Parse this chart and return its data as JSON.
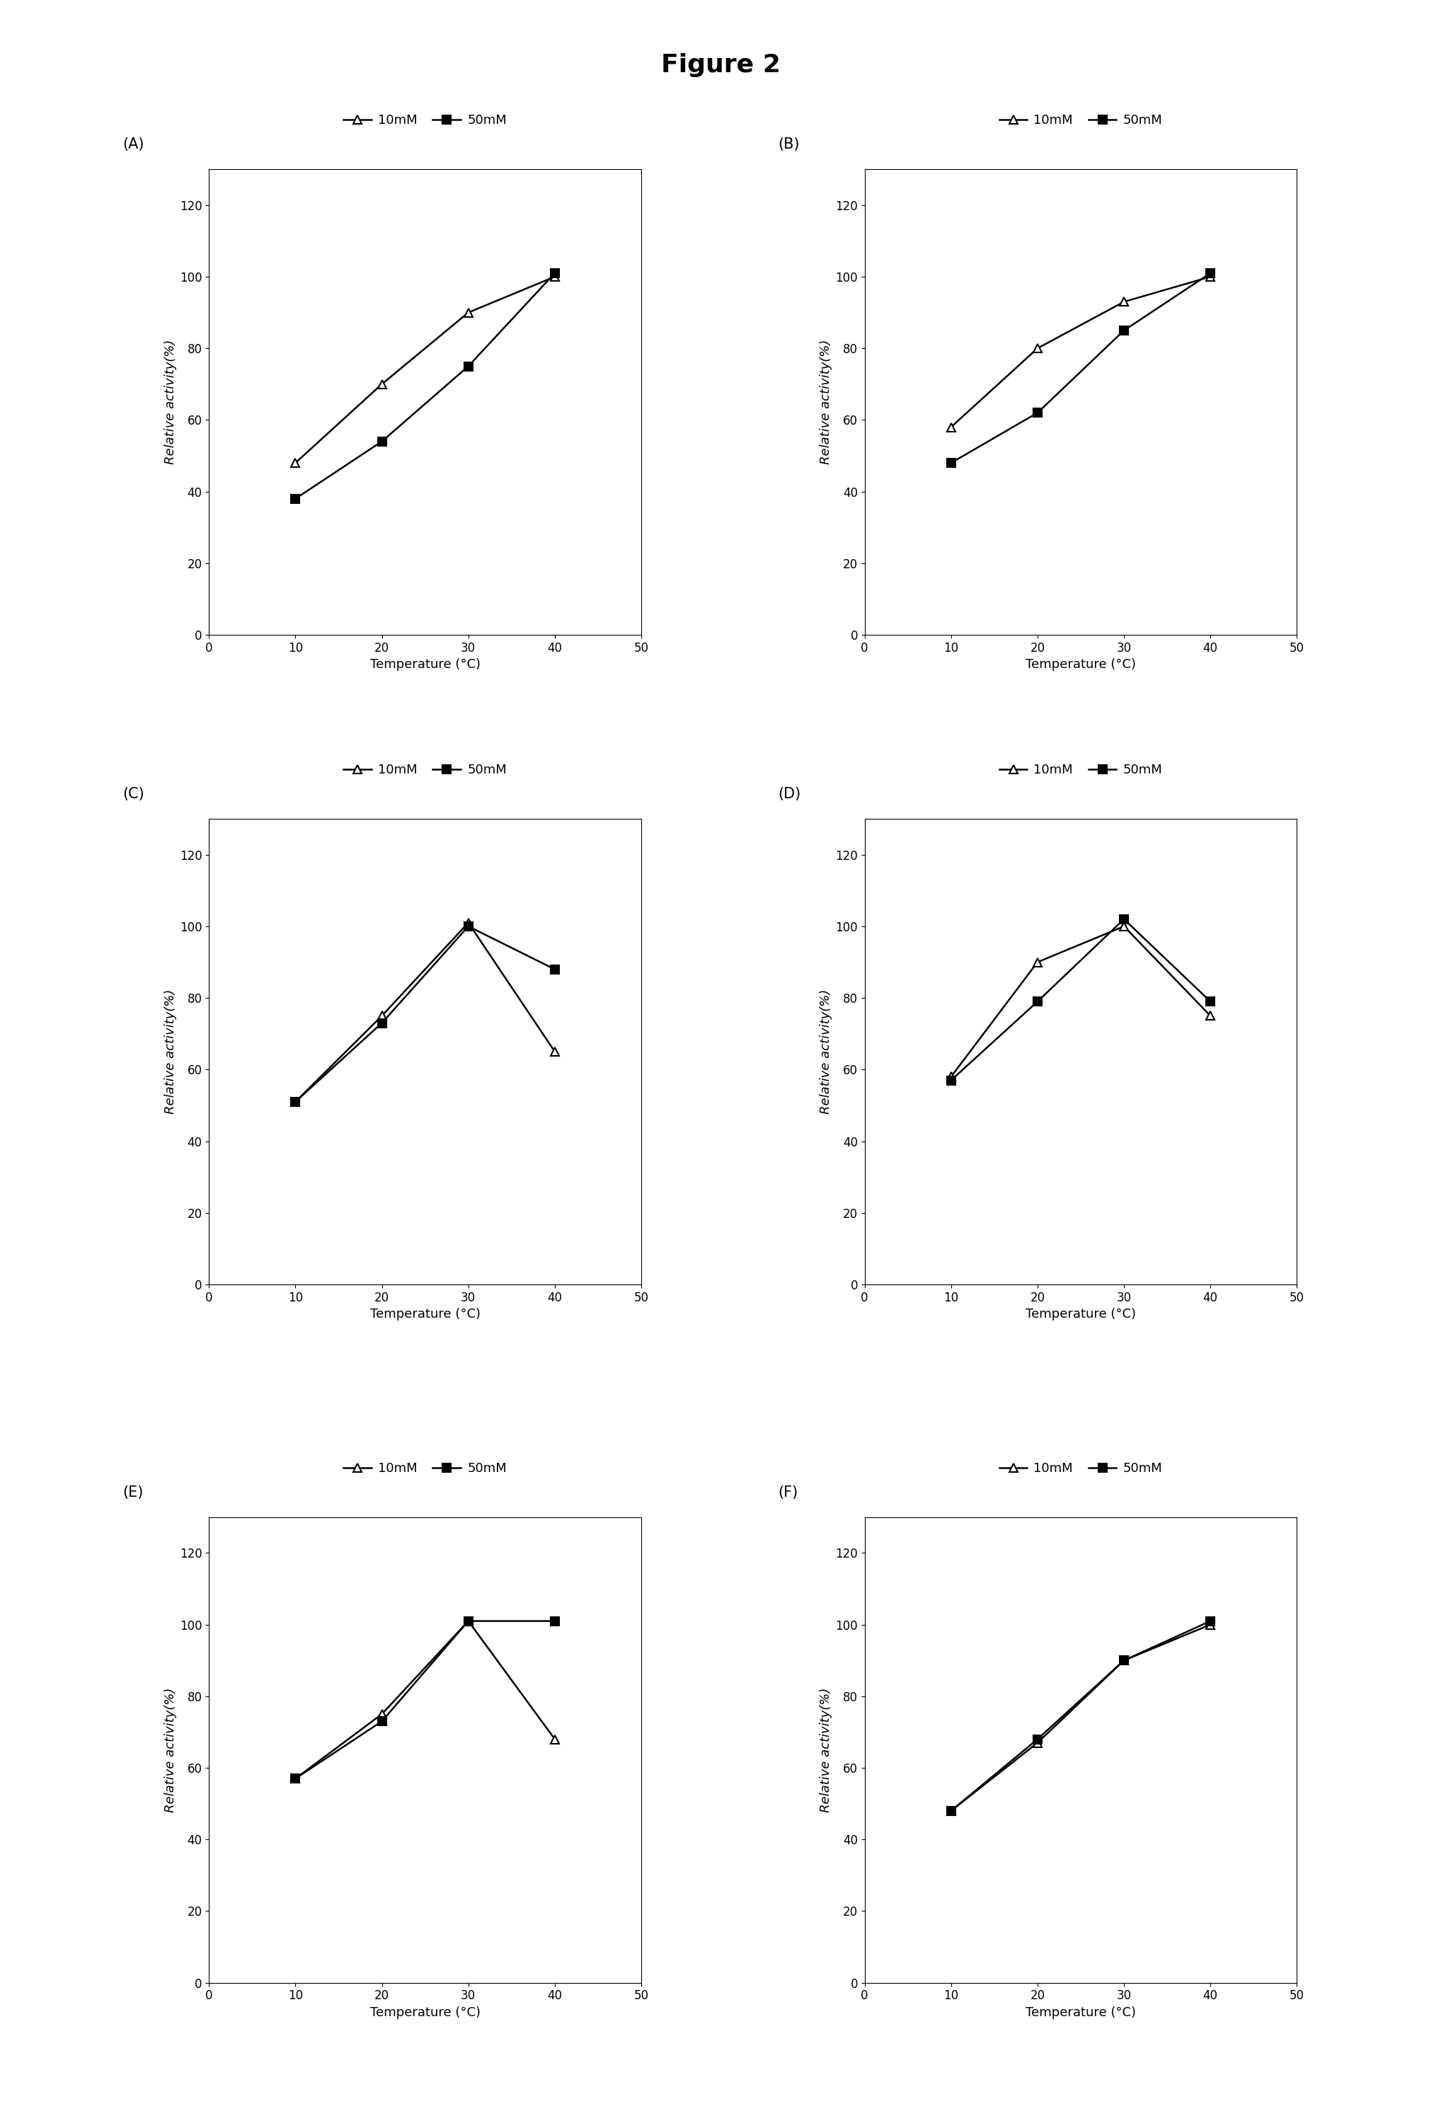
{
  "title": "Figure 2",
  "x": [
    10,
    20,
    30,
    40
  ],
  "xlim": [
    0,
    50
  ],
  "xticks": [
    0,
    10,
    20,
    30,
    40,
    50
  ],
  "ylim": [
    0,
    130
  ],
  "yticks": [
    0,
    20,
    40,
    60,
    80,
    100,
    120
  ],
  "xlabel": "Temperature (°C)",
  "ylabel": "Relative activity(%)",
  "panels": [
    {
      "label": "(A)",
      "data_10mM": [
        48,
        70,
        90,
        100
      ],
      "data_50mM": [
        38,
        54,
        75,
        101
      ]
    },
    {
      "label": "(B)",
      "data_10mM": [
        58,
        80,
        93,
        100
      ],
      "data_50mM": [
        48,
        62,
        85,
        101
      ]
    },
    {
      "label": "(C)",
      "data_10mM": [
        51,
        75,
        101,
        65
      ],
      "data_50mM": [
        51,
        73,
        100,
        88
      ]
    },
    {
      "label": "(D)",
      "data_10mM": [
        58,
        90,
        100,
        75
      ],
      "data_50mM": [
        57,
        79,
        102,
        79
      ]
    },
    {
      "label": "(E)",
      "data_10mM": [
        57,
        75,
        101,
        68
      ],
      "data_50mM": [
        57,
        73,
        101,
        101
      ]
    },
    {
      "label": "(F)",
      "data_10mM": [
        48,
        67,
        90,
        100
      ],
      "data_50mM": [
        48,
        68,
        90,
        101
      ]
    }
  ],
  "line_color": "#000000",
  "marker_10mM": "^",
  "marker_50mM": "s",
  "markersize": 9,
  "linewidth": 1.8,
  "legend_10mM": "10mM",
  "legend_50mM": "50mM",
  "label_fontsize": 13,
  "tick_fontsize": 12,
  "legend_fontsize": 13,
  "title_fontsize": 26,
  "panel_label_fontsize": 15
}
